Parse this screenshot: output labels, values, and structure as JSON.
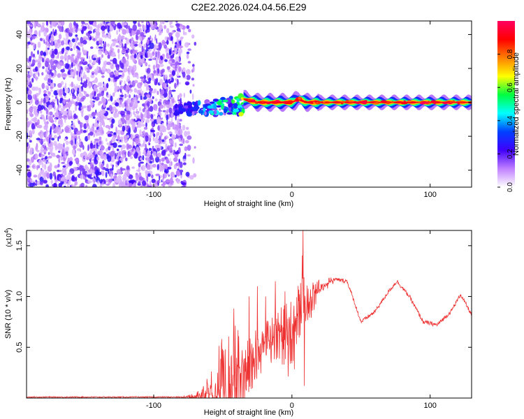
{
  "chart_data": [
    {
      "type": "heatmap",
      "title": "C2E2.2026.024.04.56.E29",
      "xlabel": "Height of straight line (km)",
      "ylabel": "Frequency (Hz)",
      "xlim": [
        -192,
        130
      ],
      "ylim": [
        -50,
        48
      ],
      "x_ticks": [
        -100,
        0,
        100
      ],
      "y_ticks": [
        -40,
        -20,
        0,
        20,
        40
      ],
      "colorbar": {
        "label": "Normalized spectral amplitude",
        "range": [
          0,
          1
        ],
        "ticks": [
          0.0,
          0.2,
          0.4,
          0.6,
          0.8
        ],
        "tick_labels": [
          "0.0",
          "0.2",
          "0.4",
          "0.6",
          "0.8"
        ],
        "colors": [
          "#ffffff",
          "#c080ff",
          "#4000ff",
          "#0040ff",
          "#00ffff",
          "#00ff40",
          "#ffff00",
          "#ff8000",
          "#ff0000",
          "#ff0060"
        ]
      },
      "regions": [
        {
          "name": "noise",
          "x_range": [
            -192,
            -75
          ],
          "freq_range": [
            -50,
            48
          ],
          "amplitude": "0.0-0.15"
        },
        {
          "name": "transition",
          "x_range": [
            -85,
            -35
          ],
          "freq_range": [
            -10,
            6
          ],
          "amplitude": "0.1-0.6"
        },
        {
          "name": "carrier",
          "x_range": [
            -35,
            130
          ],
          "freq_center": [
            [
              -35,
              2
            ],
            [
              -25,
              0
            ],
            [
              0,
              0
            ],
            [
              5,
              2
            ],
            [
              10,
              0
            ],
            [
              20,
              0
            ],
            [
              60,
              0
            ],
            [
              130,
              0
            ]
          ],
          "amplitude": "0.5-1.0"
        }
      ]
    },
    {
      "type": "line",
      "xlabel": "Height of straight line (km)",
      "ylabel": "SNR (10 * v/v)",
      "scale_label": "(x10",
      "scale_exponent": "4",
      "xlim": [
        -192,
        130
      ],
      "ylim": [
        0,
        1.65
      ],
      "x_ticks": [
        -100,
        0,
        100
      ],
      "y_ticks": [
        0.5,
        1.0,
        1.5
      ],
      "y_tick_labels": [
        "0.5",
        "1.0",
        "1.5"
      ],
      "color": "#ee3030",
      "envelope": {
        "x": [
          -192,
          -80,
          -70,
          -60,
          -50,
          -40,
          -30,
          -20,
          -10,
          0,
          5,
          8,
          10,
          15,
          20,
          30,
          40,
          50,
          60,
          70,
          76,
          85,
          95,
          105,
          115,
          122,
          130
        ],
        "y": [
          0.01,
          0.01,
          0.03,
          0.1,
          0.28,
          0.38,
          0.45,
          0.6,
          0.7,
          0.8,
          0.88,
          1.3,
          0.95,
          1.05,
          1.12,
          1.17,
          1.15,
          0.75,
          0.85,
          1.05,
          1.15,
          1.0,
          0.75,
          0.72,
          0.85,
          1.02,
          0.82
        ]
      },
      "amplitude": {
        "x": [
          -192,
          -80,
          -70,
          -62,
          -55,
          -45,
          -38,
          -30,
          -25,
          -10,
          0,
          10,
          20,
          30,
          130
        ],
        "y": [
          0.005,
          0.005,
          0.02,
          0.1,
          0.25,
          0.45,
          0.3,
          0.2,
          0.15,
          0.15,
          0.3,
          0.15,
          0.05,
          0.02,
          0.02
        ]
      },
      "spikes": [
        {
          "x": 8,
          "y": 1.65
        },
        {
          "x": 9,
          "y": 0.12
        },
        {
          "x": -42,
          "y": 0.88
        },
        {
          "x": -31,
          "y": 1.0
        },
        {
          "x": -25,
          "y": 1.1
        },
        {
          "x": -19,
          "y": 1.0
        },
        {
          "x": -12,
          "y": 1.15
        },
        {
          "x": -5,
          "y": 1.05
        }
      ]
    }
  ]
}
